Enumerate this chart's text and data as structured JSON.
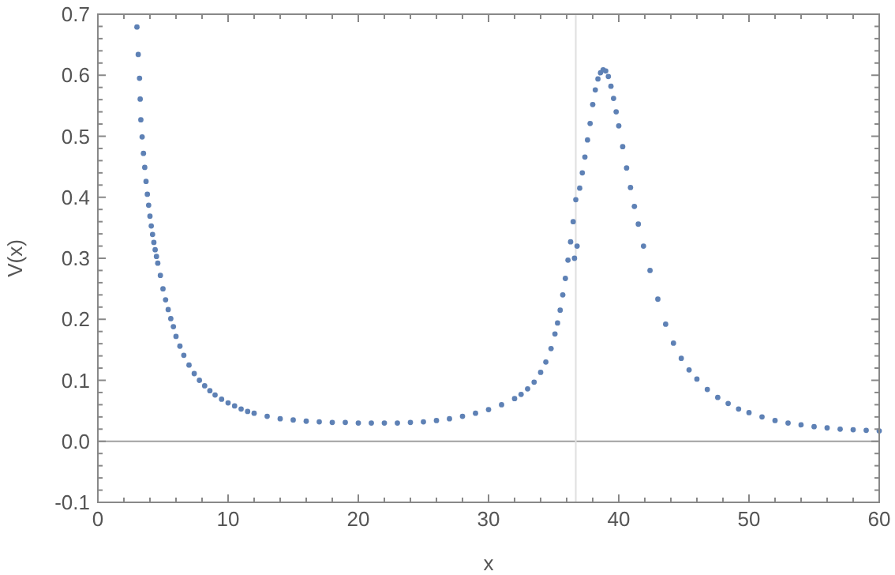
{
  "chart_data": {
    "type": "scatter",
    "xlabel": "x",
    "ylabel": "V(x)",
    "xlim": [
      0,
      60
    ],
    "ylim": [
      -0.1,
      0.7
    ],
    "xticks": [
      0,
      {
        "value": 2,
        "label": null
      },
      {
        "value": 4,
        "label": null
      },
      {
        "value": 6,
        "label": null
      },
      {
        "value": 8,
        "label": null
      },
      10,
      {
        "value": 12,
        "label": null
      },
      {
        "value": 14,
        "label": null
      },
      {
        "value": 16,
        "label": null
      },
      {
        "value": 18,
        "label": null
      },
      20,
      {
        "value": 22,
        "label": null
      },
      {
        "value": 24,
        "label": null
      },
      {
        "value": 26,
        "label": null
      },
      {
        "value": 28,
        "label": null
      },
      30,
      {
        "value": 32,
        "label": null
      },
      {
        "value": 34,
        "label": null
      },
      {
        "value": 36,
        "label": null
      },
      {
        "value": 38,
        "label": null
      },
      40,
      {
        "value": 42,
        "label": null
      },
      {
        "value": 44,
        "label": null
      },
      {
        "value": 46,
        "label": null
      },
      {
        "value": 48,
        "label": null
      },
      50,
      {
        "value": 52,
        "label": null
      },
      {
        "value": 54,
        "label": null
      },
      {
        "value": 56,
        "label": null
      },
      {
        "value": 58,
        "label": null
      },
      60
    ],
    "yticks": [
      {
        "value": -0.1,
        "label": "-0.1"
      },
      {
        "value": -0.08,
        "label": null
      },
      {
        "value": -0.06,
        "label": null
      },
      {
        "value": -0.04,
        "label": null
      },
      {
        "value": -0.02,
        "label": null
      },
      {
        "value": 0,
        "label": "0.0"
      },
      {
        "value": 0.02,
        "label": null
      },
      {
        "value": 0.04,
        "label": null
      },
      {
        "value": 0.06,
        "label": null
      },
      {
        "value": 0.08,
        "label": null
      },
      0.1,
      {
        "value": 0.12,
        "label": null
      },
      {
        "value": 0.14,
        "label": null
      },
      {
        "value": 0.16,
        "label": null
      },
      {
        "value": 0.18,
        "label": null
      },
      0.2,
      {
        "value": 0.22,
        "label": null
      },
      {
        "value": 0.24,
        "label": null
      },
      {
        "value": 0.26,
        "label": null
      },
      {
        "value": 0.28,
        "label": null
      },
      0.3,
      {
        "value": 0.32,
        "label": null
      },
      {
        "value": 0.34,
        "label": null
      },
      {
        "value": 0.36,
        "label": null
      },
      {
        "value": 0.38,
        "label": null
      },
      0.4,
      {
        "value": 0.42,
        "label": null
      },
      {
        "value": 0.44,
        "label": null
      },
      {
        "value": 0.46,
        "label": null
      },
      {
        "value": 0.48,
        "label": null
      },
      0.5,
      {
        "value": 0.52,
        "label": null
      },
      {
        "value": 0.54,
        "label": null
      },
      {
        "value": 0.56,
        "label": null
      },
      {
        "value": 0.58,
        "label": null
      },
      0.6,
      {
        "value": 0.62,
        "label": null
      },
      {
        "value": 0.64,
        "label": null
      },
      {
        "value": 0.66,
        "label": null
      },
      {
        "value": 0.68,
        "label": null
      },
      0.7
    ],
    "grid": false,
    "marker": "circle",
    "ref_lines": [
      {
        "axis": "y",
        "value": 0,
        "color": "#a0a0a0"
      },
      {
        "axis": "x",
        "value": 36.7,
        "color": "#e0e0e0"
      }
    ],
    "series": [
      {
        "color": "#5e81b5",
        "x": [
          3.0,
          3.1,
          3.2,
          3.25,
          3.3,
          3.4,
          3.5,
          3.6,
          3.7,
          3.8,
          3.9,
          4.0,
          4.1,
          4.2,
          4.3,
          4.4,
          4.5,
          4.6,
          4.8,
          5.0,
          5.2,
          5.4,
          5.6,
          5.8,
          6.0,
          6.3,
          6.6,
          7.0,
          7.4,
          7.8,
          8.2,
          8.6,
          9.0,
          9.5,
          10,
          10.5,
          11,
          11.5,
          12,
          13,
          14,
          15,
          16,
          17,
          18,
          19,
          20,
          21,
          22,
          23,
          24,
          25,
          26,
          27,
          28,
          29,
          30,
          31,
          32,
          32.5,
          33,
          33.5,
          34,
          34.4,
          34.8,
          35.1,
          35.3,
          35.5,
          35.7,
          35.9,
          36.1,
          36.3,
          36.5,
          36.6,
          36.7,
          36.8,
          37.0,
          37.2,
          37.4,
          37.6,
          37.8,
          38.0,
          38.2,
          38.4,
          38.6,
          38.8,
          39.0,
          39.2,
          39.4,
          39.6,
          39.8,
          40.0,
          40.3,
          40.6,
          40.9,
          41.2,
          41.5,
          41.9,
          42.4,
          43.0,
          43.6,
          44.2,
          44.8,
          45.4,
          46.0,
          46.8,
          47.6,
          48.4,
          49.2,
          50,
          51,
          52,
          53,
          54,
          55,
          56,
          57,
          58,
          59,
          60
        ],
        "values": [
          0.679,
          0.634,
          0.595,
          0.561,
          0.527,
          0.499,
          0.472,
          0.449,
          0.426,
          0.405,
          0.387,
          0.369,
          0.353,
          0.339,
          0.326,
          0.314,
          0.303,
          0.292,
          0.272,
          0.25,
          0.232,
          0.216,
          0.201,
          0.188,
          0.172,
          0.156,
          0.141,
          0.125,
          0.111,
          0.1,
          0.091,
          0.083,
          0.076,
          0.069,
          0.063,
          0.058,
          0.053,
          0.049,
          0.046,
          0.041,
          0.037,
          0.035,
          0.033,
          0.032,
          0.031,
          0.031,
          0.03,
          0.03,
          0.03,
          0.03,
          0.031,
          0.032,
          0.034,
          0.037,
          0.041,
          0.046,
          0.052,
          0.06,
          0.07,
          0.077,
          0.086,
          0.097,
          0.113,
          0.13,
          0.152,
          0.176,
          0.194,
          0.215,
          0.24,
          0.267,
          0.297,
          0.327,
          0.36,
          0.3,
          0.396,
          0.32,
          0.415,
          0.44,
          0.466,
          0.494,
          0.521,
          0.552,
          0.576,
          0.594,
          0.604,
          0.609,
          0.607,
          0.598,
          0.582,
          0.562,
          0.54,
          0.517,
          0.483,
          0.448,
          0.416,
          0.385,
          0.356,
          0.32,
          0.28,
          0.233,
          0.192,
          0.161,
          0.136,
          0.117,
          0.102,
          0.085,
          0.072,
          0.062,
          0.053,
          0.047,
          0.04,
          0.034,
          0.03,
          0.027,
          0.024,
          0.022,
          0.02,
          0.019,
          0.018,
          0.017
        ]
      }
    ]
  }
}
